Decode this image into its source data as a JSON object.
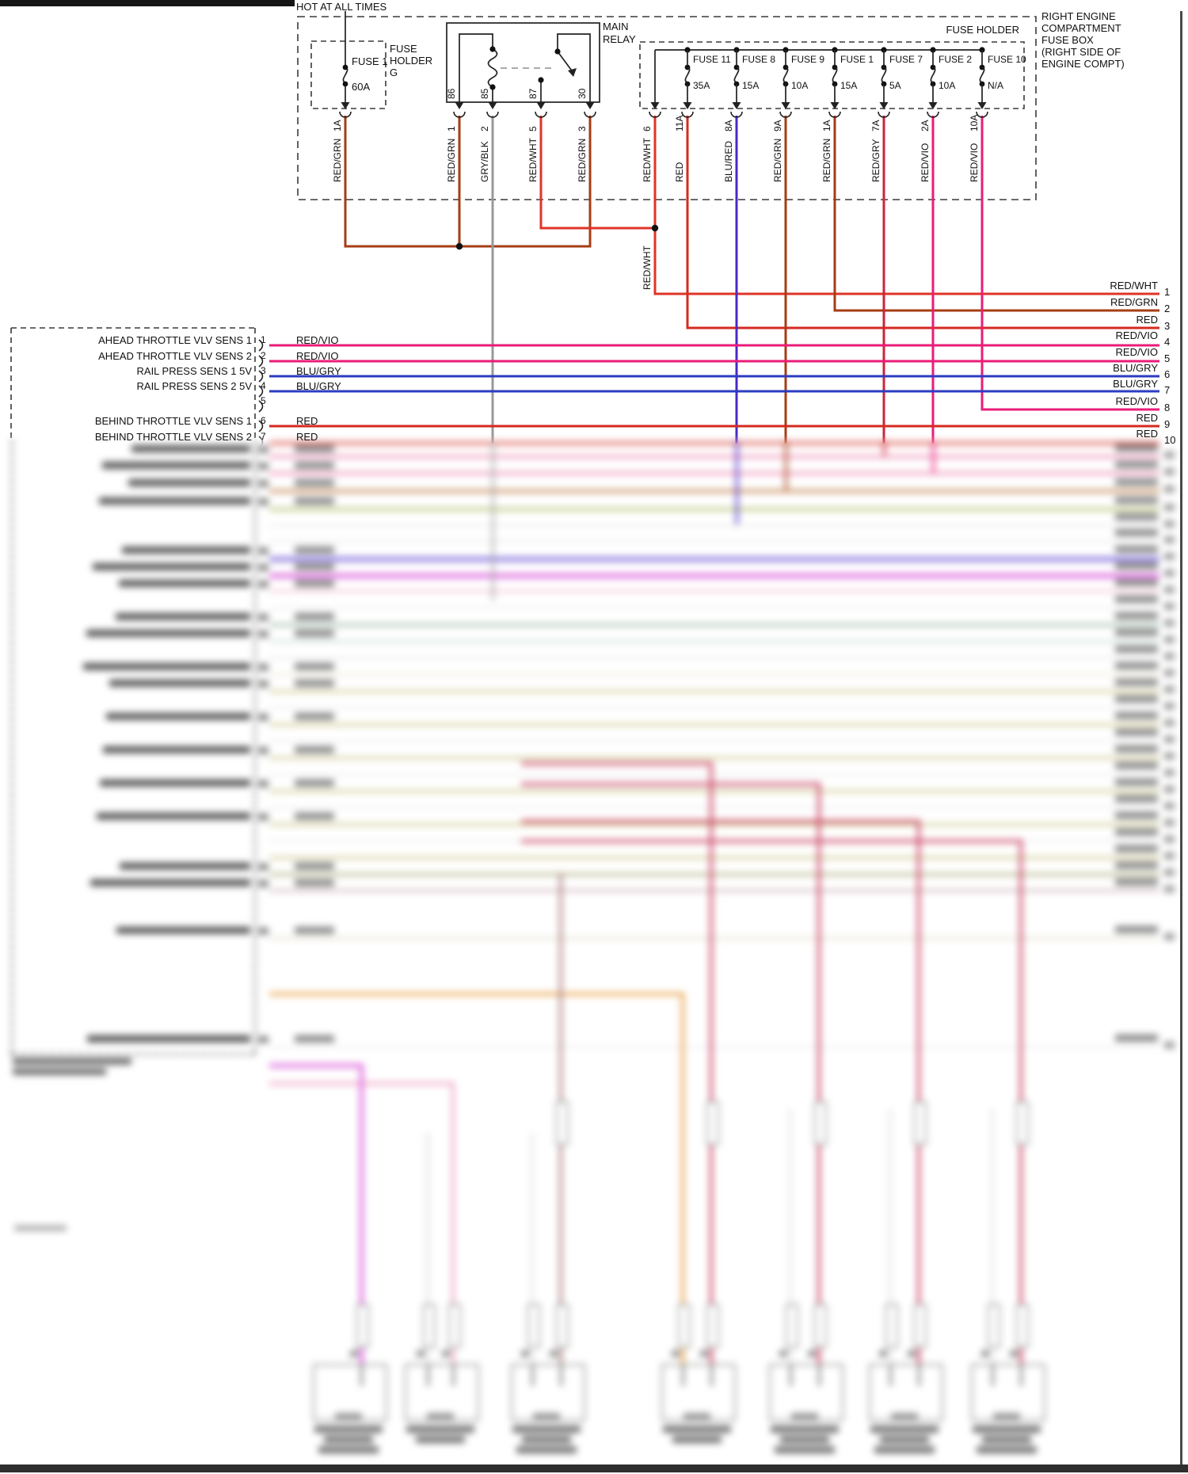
{
  "header": {
    "hot_label": "HOT AT ALL TIMES",
    "fuse_box_note_lines": [
      "RIGHT ENGINE",
      "COMPARTMENT",
      "FUSE BOX",
      "(RIGHT SIDE OF",
      "ENGINE COMPT)"
    ]
  },
  "fuse_holder_g": {
    "title_lines": [
      "FUSE",
      "HOLDER",
      "G"
    ],
    "fuse_name": "FUSE 1",
    "rating": "60A"
  },
  "main_relay": {
    "label_lines": [
      "MAIN",
      "RELAY"
    ],
    "pins": [
      "86",
      "85",
      "87",
      "30"
    ]
  },
  "fuse_holder": {
    "label": "FUSE HOLDER",
    "fuses": [
      {
        "name": "FUSE 11",
        "rating": "35A"
      },
      {
        "name": "FUSE 8",
        "rating": "15A"
      },
      {
        "name": "FUSE 9",
        "rating": "10A"
      },
      {
        "name": "FUSE 1",
        "rating": "15A"
      },
      {
        "name": "FUSE 7",
        "rating": "5A"
      },
      {
        "name": "FUSE 2",
        "rating": "10A"
      },
      {
        "name": "FUSE 10",
        "rating": "N/A"
      }
    ]
  },
  "top_wires": [
    {
      "pin": "1A",
      "color": "RED/GRN",
      "hex": "#a63c14"
    },
    {
      "pin": "1",
      "color": "RED/GRN",
      "hex": "#a63c14"
    },
    {
      "pin": "2",
      "color": "GRY/BLK",
      "hex": "#999999"
    },
    {
      "pin": "5",
      "color": "RED/WHT",
      "hex": "#e03428"
    },
    {
      "pin": "3",
      "color": "RED/GRN",
      "hex": "#a63c14"
    },
    {
      "pin": "6",
      "color": "RED/WHT",
      "hex": "#e03428"
    },
    {
      "pin": "11A",
      "color": "RED",
      "hex": "#d42a20"
    },
    {
      "pin": "8A",
      "color": "BLU/RED",
      "hex": "#4a28c8"
    },
    {
      "pin": "9A",
      "color": "RED/GRN",
      "hex": "#a63c14"
    },
    {
      "pin": "1A",
      "color": "RED/GRN",
      "hex": "#a63c14"
    },
    {
      "pin": "7A",
      "color": "RED/GRY",
      "hex": "#cc2438"
    },
    {
      "pin": "2A",
      "color": "RED/VIO",
      "hex": "#ea1c78"
    },
    {
      "pin": "10A",
      "color": "RED/VIO",
      "hex": "#ea1c78"
    }
  ],
  "junction_label": "RED/WHT",
  "right_rows": [
    {
      "num": "1",
      "label": "RED/WHT",
      "hex": "#e03428"
    },
    {
      "num": "2",
      "label": "RED/GRN",
      "hex": "#a63c14"
    },
    {
      "num": "3",
      "label": "RED",
      "hex": "#d42a20"
    },
    {
      "num": "4",
      "label": "RED/VIO",
      "hex": "#ea1c78"
    },
    {
      "num": "5",
      "label": "RED/VIO",
      "hex": "#ea1c78"
    },
    {
      "num": "6",
      "label": "BLU/GRY",
      "hex": "#2c3cc0"
    },
    {
      "num": "7",
      "label": "BLU/GRY",
      "hex": "#2c3cc0"
    },
    {
      "num": "8",
      "label": "RED/VIO",
      "hex": "#ea1c78"
    },
    {
      "num": "9",
      "label": "RED",
      "hex": "#d42a20"
    },
    {
      "num": "10",
      "label": "RED",
      "hex": "#d42a20"
    }
  ],
  "ecm": {
    "pins": [
      {
        "num": "1",
        "label": "AHEAD THROTTLE VLV SENS 1",
        "wire": "RED/VIO"
      },
      {
        "num": "2",
        "label": "AHEAD THROTTLE VLV SENS 2",
        "wire": "RED/VIO"
      },
      {
        "num": "3",
        "label": "RAIL PRESS SENS 1 5V",
        "wire": "BLU/GRY"
      },
      {
        "num": "4",
        "label": "RAIL PRESS SENS 2 5V",
        "wire": "BLU/GRY"
      },
      {
        "num": "5",
        "label": "",
        "wire": ""
      },
      {
        "num": "6",
        "label": "BEHIND THROTTLE VLV SENS 1",
        "wire": "RED"
      },
      {
        "num": "7",
        "label": "BEHIND THROTTLE VLV SENS 2",
        "wire": "RED"
      }
    ]
  },
  "blurred_section": {
    "legible": false,
    "description": "Lower three quarters of the diagram is blurred and illegible (wire rows, ECM pin list, and seven bottom component connectors).",
    "visible_wire_hexes": [
      "#e87aa6",
      "#c58a5a",
      "#bcc47e",
      "#8f7de0",
      "#e070e0",
      "#a9c4b4",
      "#d6d2a4",
      "#cc4d6b",
      "#e8a34d",
      "#eeaac6",
      "#aaaaaa"
    ]
  },
  "frame": {
    "border_hex": "#4a4a4a",
    "bottom_bar_hex": "#2e2e2e",
    "top_bar_hex": "#151515"
  }
}
